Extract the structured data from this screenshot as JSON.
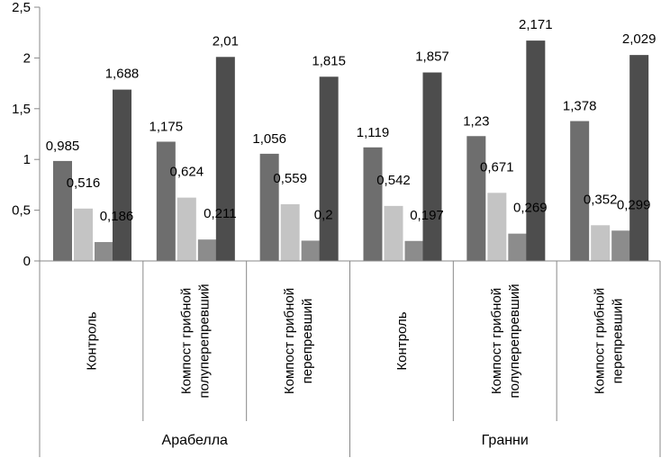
{
  "chart_data": {
    "type": "bar",
    "title": "",
    "xlabel": "",
    "ylabel": "",
    "ylim": [
      0,
      2.5
    ],
    "yticks": [
      "0",
      "0,5",
      "1",
      "1,5",
      "2",
      "2,5"
    ],
    "ytick_values": [
      0,
      0.5,
      1,
      1.5,
      2,
      2.5
    ],
    "grid": false,
    "legend": "none",
    "groups": [
      {
        "label": "Арабелла",
        "categories": [
          0,
          1,
          2
        ]
      },
      {
        "label": "Гранни",
        "categories": [
          3,
          4,
          5
        ]
      }
    ],
    "categories": [
      "Контроль",
      "Компост грибной полуперепревший",
      "Компост грибной перепревший",
      "Контроль",
      "Компост грибной полуперепревший",
      "Компост грибной перепревший"
    ],
    "category_lines": [
      [
        "Контроль"
      ],
      [
        "Компост грибной",
        "полуперепревший"
      ],
      [
        "Компост грибной",
        "перепревший"
      ],
      [
        "Контроль"
      ],
      [
        "Компост грибной",
        "полуперепревший"
      ],
      [
        "Компост грибной",
        "перепревший"
      ]
    ],
    "series": [
      {
        "values": [
          0.985,
          1.175,
          1.056,
          1.119,
          1.23,
          1.378
        ],
        "labels": [
          "0,985",
          "1,175",
          "1,056",
          "1,119",
          "1,23",
          "1,378"
        ],
        "color": "#6e6e6e"
      },
      {
        "values": [
          0.516,
          0.624,
          0.559,
          0.542,
          0.671,
          0.352
        ],
        "labels": [
          "0,516",
          "0,624",
          "0,559",
          "0,542",
          "0,671",
          "0,352"
        ],
        "color": "#c4c4c4"
      },
      {
        "values": [
          0.186,
          0.211,
          0.2,
          0.197,
          0.269,
          0.299
        ],
        "labels": [
          "0,186",
          "0,211",
          "0,2",
          "0,197",
          "0,269",
          "0,299"
        ],
        "color": "#8c8c8c"
      },
      {
        "values": [
          1.688,
          2.01,
          1.815,
          1.857,
          2.171,
          2.029
        ],
        "labels": [
          "1,688",
          "2,01",
          "1,815",
          "1,857",
          "2,171",
          "2,029"
        ],
        "color": "#4d4d4d"
      }
    ]
  }
}
